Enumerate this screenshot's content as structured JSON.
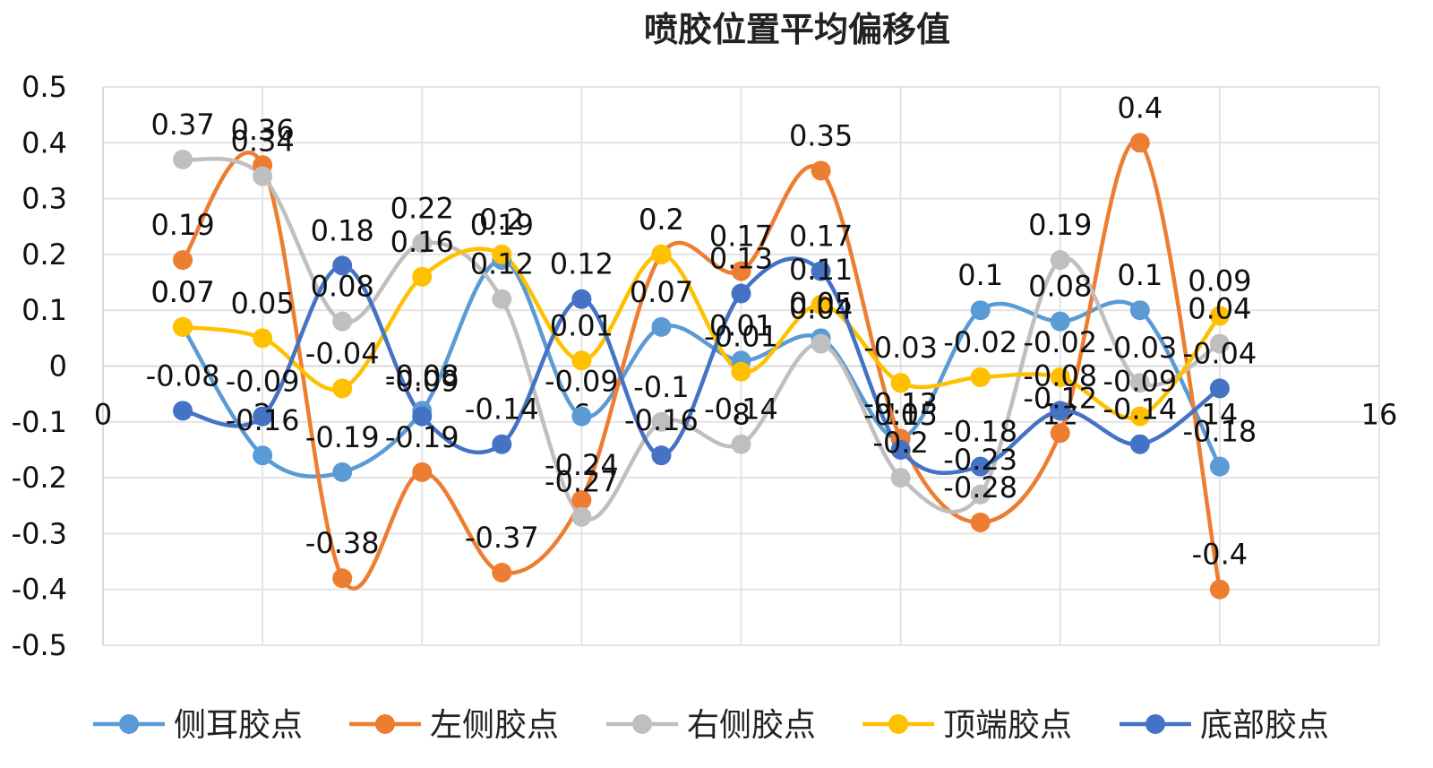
{
  "chart_data": {
    "type": "line",
    "title": "喷胶位置平均偏移值",
    "xlabel": "",
    "ylabel": "",
    "xlim": [
      0,
      16
    ],
    "ylim": [
      -0.5,
      0.5
    ],
    "x_ticks": [
      0,
      2,
      4,
      6,
      8,
      10,
      12,
      14,
      16
    ],
    "y_ticks": [
      0.5,
      0.4,
      0.3,
      0.2,
      0.1,
      0,
      -0.1,
      -0.2,
      -0.3,
      -0.4,
      -0.5
    ],
    "x_tick_labels": [
      "0",
      "2",
      "4",
      "6",
      "8",
      "10",
      "12",
      "14",
      "16"
    ],
    "y_tick_labels": [
      "0.5",
      "0.4",
      "0.3",
      "0.2",
      "0.1",
      "0",
      "-0.1",
      "-0.2",
      "-0.3",
      "-0.4",
      "-0.5"
    ],
    "x": [
      1,
      2,
      3,
      4,
      5,
      6,
      7,
      8,
      9,
      10,
      11,
      12,
      13,
      14
    ],
    "series": [
      {
        "name": "侧耳胶点",
        "color": "#5B9BD5",
        "values": [
          0.07,
          -0.16,
          -0.19,
          -0.08,
          0.19,
          -0.09,
          0.07,
          0.01,
          0.05,
          -0.13,
          0.1,
          0.08,
          0.1,
          -0.18
        ]
      },
      {
        "name": "左侧胶点",
        "color": "#ED7D31",
        "values": [
          0.19,
          0.36,
          -0.38,
          -0.19,
          -0.37,
          -0.24,
          0.2,
          0.17,
          0.35,
          -0.13,
          -0.28,
          -0.12,
          0.4,
          -0.4
        ]
      },
      {
        "name": "右侧胶点",
        "color": "#BFBFBF",
        "values": [
          0.37,
          0.34,
          0.08,
          0.22,
          0.12,
          -0.27,
          -0.1,
          -0.14,
          0.04,
          -0.2,
          -0.23,
          0.19,
          -0.03,
          0.04
        ]
      },
      {
        "name": "顶端胶点",
        "color": "#FFC000",
        "values": [
          0.07,
          0.05,
          -0.04,
          0.16,
          0.2,
          0.01,
          0.2,
          -0.01,
          0.11,
          -0.03,
          -0.02,
          -0.02,
          -0.09,
          0.09
        ]
      },
      {
        "name": "底部胶点",
        "color": "#4472C4",
        "values": [
          -0.08,
          -0.09,
          0.18,
          -0.09,
          -0.14,
          0.12,
          -0.16,
          0.13,
          0.17,
          -0.15,
          -0.18,
          -0.08,
          -0.14,
          -0.04
        ]
      }
    ],
    "legend_position": "bottom",
    "grid": true,
    "data_labels": true
  }
}
